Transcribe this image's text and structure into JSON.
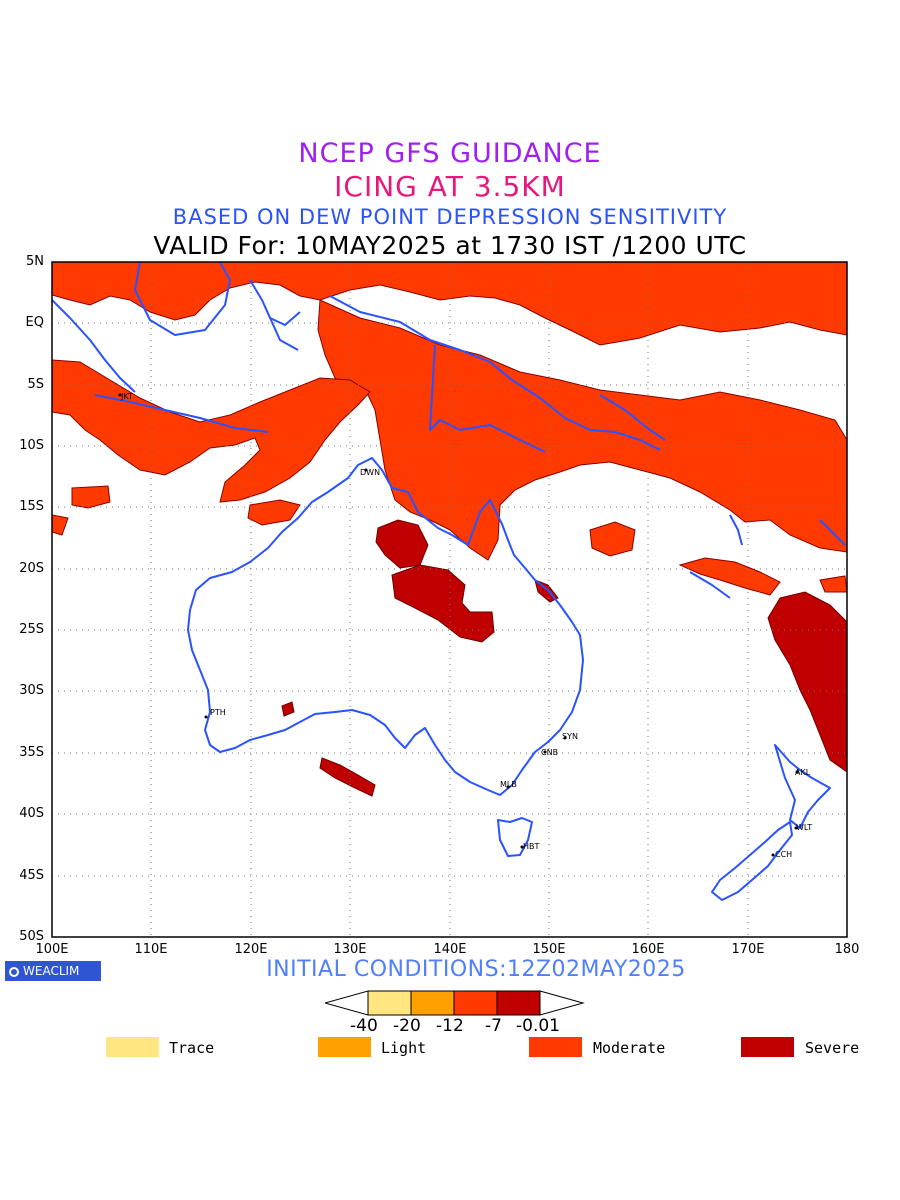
{
  "header": {
    "line1": "NCEP GFS GUIDANCE",
    "line2": "ICING AT 3.5KM",
    "line3": "BASED ON DEW POINT DEPRESSION SENSITIVITY",
    "line4": "VALID For: 10MAY2025 at 1730 IST /1200 UTC"
  },
  "axes": {
    "lat_labels": [
      "5N",
      "EQ",
      "5S",
      "10S",
      "15S",
      "20S",
      "25S",
      "30S",
      "35S",
      "40S",
      "45S",
      "50S"
    ],
    "lon_labels": [
      "100E",
      "110E",
      "120E",
      "130E",
      "140E",
      "150E",
      "160E",
      "170E",
      "180"
    ],
    "lat_range": [
      5,
      -50
    ],
    "lon_range": [
      100,
      180
    ],
    "grid": "dotted"
  },
  "cities": [
    {
      "code": "JKT"
    },
    {
      "code": "DWN"
    },
    {
      "code": "PTH"
    },
    {
      "code": "SYN"
    },
    {
      "code": "CNB"
    },
    {
      "code": "MLB"
    },
    {
      "code": "HBT"
    },
    {
      "code": "AKL"
    },
    {
      "code": "WLT"
    },
    {
      "code": "CCH"
    }
  ],
  "footer": {
    "brand": "WEACLIM",
    "initial_conditions": "INITIAL CONDITIONS:12Z02MAY2025"
  },
  "colorbar": {
    "ticks": [
      "-40",
      "-20",
      "-12",
      "-7",
      "-0.01"
    ],
    "colors": [
      "#ffe680",
      "#ffa000",
      "#ff3a00",
      "#c00000"
    ]
  },
  "legend": [
    {
      "label": "Trace",
      "color": "#ffe680"
    },
    {
      "label": "Light",
      "color": "#ffa000"
    },
    {
      "label": "Moderate",
      "color": "#ff3a00"
    },
    {
      "label": "Severe",
      "color": "#c00000"
    }
  ],
  "colors": {
    "coastline": "#2a52ff",
    "moderate": "#ff3a00",
    "severe": "#c00000",
    "outline": "#8b0000"
  }
}
